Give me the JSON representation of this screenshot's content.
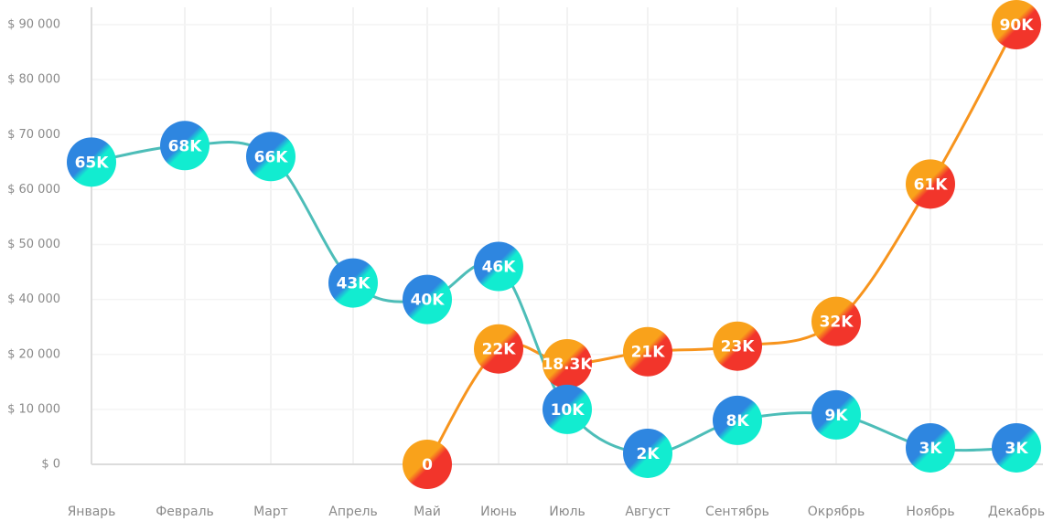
{
  "chart_data": {
    "type": "line",
    "categories": [
      "Январь",
      "Февраль",
      "Март",
      "Апрель",
      "Май",
      "Июнь",
      "Июль",
      "Август",
      "Сентябрь",
      "Окрябрь",
      "Ноябрь",
      "Декабрь"
    ],
    "series": [
      {
        "color": "#f7941d",
        "gradient": [
          "#f9a21b",
          "#f2352b"
        ],
        "values": [
          null,
          null,
          null,
          null,
          0,
          22000,
          18300,
          21000,
          23000,
          32000,
          61000,
          90000
        ],
        "value_labels": [
          null,
          null,
          null,
          null,
          "0",
          "22K",
          "18.3K",
          "21K",
          "23K",
          "32K",
          "61K",
          "90K"
        ]
      },
      {
        "color": "#4dbdb8",
        "gradient": [
          "#2e86e0",
          "#12ecd0"
        ],
        "values": [
          65000,
          68000,
          66000,
          43000,
          40000,
          46000,
          10000,
          2000,
          8000,
          9000,
          3000,
          3000
        ],
        "value_labels": [
          "65K",
          "68K",
          "66K",
          "43K",
          "40K",
          "46K",
          "10K",
          "2K",
          "8K",
          "9K",
          "3K",
          "3K"
        ]
      }
    ],
    "ylim": [
      0,
      90000
    ],
    "yticks": [
      {
        "value": 0,
        "label": "$ 0"
      },
      {
        "value": 10000,
        "label": "$ 10 000"
      },
      {
        "value": 20000,
        "label": "$ 20 000"
      },
      {
        "value": 40000,
        "label": "$ 40 000"
      },
      {
        "value": 50000,
        "label": "$ 50 000"
      },
      {
        "value": 60000,
        "label": "$ 60 000"
      },
      {
        "value": 70000,
        "label": "$ 70 000"
      },
      {
        "value": 80000,
        "label": "$ 80 000"
      },
      {
        "value": 90000,
        "label": "$ 90 000"
      }
    ],
    "grid": true
  }
}
